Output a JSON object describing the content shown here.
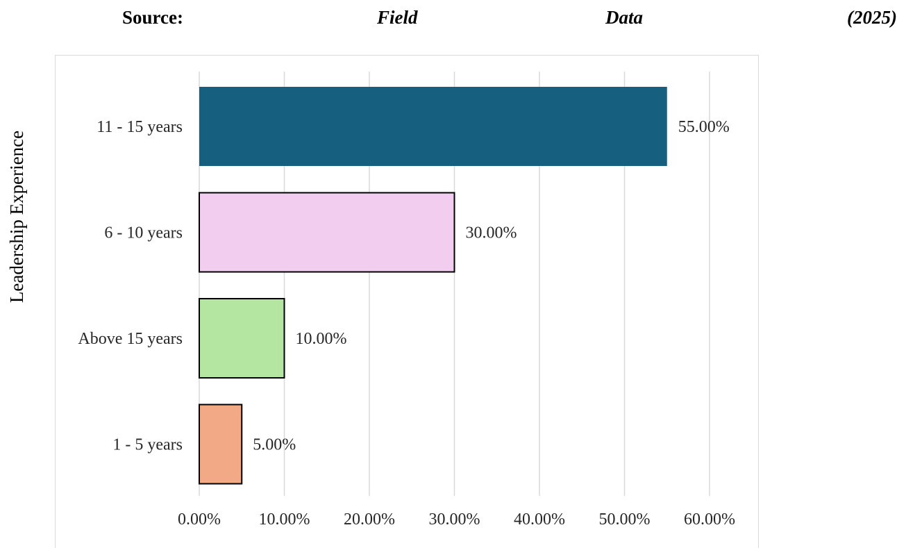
{
  "source": {
    "label": "Source:",
    "words": [
      "Field",
      "Data",
      "(2025)"
    ]
  },
  "chart_data": {
    "type": "bar",
    "orientation": "horizontal",
    "title": "",
    "xlabel": "",
    "ylabel": "Leadership Experience",
    "categories": [
      "11 - 15 years",
      "6 - 10 years",
      "Above 15 years",
      "1 - 5 years"
    ],
    "values": [
      55.0,
      30.0,
      10.0,
      5.0
    ],
    "data_labels": [
      "55.00%",
      "30.00%",
      "10.00%",
      "5.00%"
    ],
    "colors": [
      "#175f7f",
      "#f2cdef",
      "#b4e6a1",
      "#f1aa85"
    ],
    "xlim": [
      0,
      60
    ],
    "xticks": [
      0,
      10,
      20,
      30,
      40,
      50,
      60
    ],
    "xtick_labels": [
      "0.00%",
      "10.00%",
      "20.00%",
      "30.00%",
      "40.00%",
      "50.00%",
      "60.00%"
    ],
    "grid": true,
    "legend": "none"
  }
}
